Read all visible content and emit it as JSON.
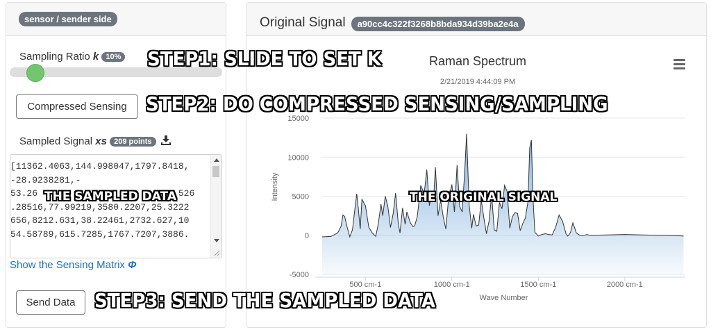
{
  "left_panel": {
    "header_badge": "sensor / sender side",
    "sampling_label": "Sampling Ratio",
    "sampling_var": "k",
    "sampling_badge": "10%",
    "slider_value": 0.1,
    "compress_button": "Compressed Sensing",
    "sampled_label": "Sampled Signal",
    "sampled_var": "xs",
    "points_badge": "209 points",
    "download_icon": "download-icon",
    "sampled_text": "[11362.4063,144.998047,1797.8418,\n-28.9238281,-\n53.26                          526\n.28516,77.99219,3580.2207,25.3222\n656,8212.631,38.22461,2732.627,10\n54.58789,615.7285,1767.7207,3886.",
    "matrix_link": "Show the Sensing Matrix",
    "matrix_symbol": "Φ",
    "send_button": "Send Data"
  },
  "right_panel": {
    "title": "Original Signal",
    "hash_badge": "a90cc4c322f3268b8bda934d39ba2e4a",
    "menu_icon": "hamburger-menu-icon"
  },
  "overlays": {
    "step1": "STEP1: SLIDE TO SET K",
    "step2": "STEP2: DO COMPRESSED SENSING/SAMPLING",
    "step3": "STEP3: SEND THE SAMPLED DATA",
    "sampled_data": "THE SAMPLED DATA",
    "original_signal": "THE ORIGINAL SIGNAL"
  },
  "chart_data": {
    "type": "area",
    "title": "Raman Spectrum",
    "subtitle": "2/21/2019 4:44:09 PM",
    "xlabel": "Wave Number",
    "ylabel": "Intensity",
    "xlim": [
      250,
      2350
    ],
    "ylim": [
      -5000,
      15000
    ],
    "y_ticks": [
      -5000,
      0,
      5000,
      10000,
      15000
    ],
    "x_ticks": [
      500,
      1000,
      1500,
      2000
    ],
    "x_tick_labels": [
      "500 cm-1",
      "1000 cm-1",
      "1500 cm-1",
      "2000 cm-1"
    ],
    "x": [
      250,
      300,
      340,
      360,
      370,
      380,
      395,
      410,
      425,
      440,
      450,
      460,
      470,
      480,
      500,
      520,
      540,
      560,
      575,
      590,
      600,
      615,
      630,
      645,
      660,
      675,
      690,
      700,
      715,
      730,
      740,
      760,
      775,
      785,
      800,
      820,
      840,
      855,
      870,
      885,
      895,
      905,
      920,
      935,
      950,
      965,
      980,
      1000,
      1015,
      1030,
      1045,
      1060,
      1075,
      1085,
      1100,
      1115,
      1125,
      1140,
      1155,
      1170,
      1185,
      1200,
      1215,
      1230,
      1245,
      1260,
      1275,
      1290,
      1305,
      1320,
      1335,
      1350,
      1365,
      1380,
      1395,
      1410,
      1425,
      1440,
      1450,
      1460,
      1470,
      1480,
      1500,
      1520,
      1540,
      1560,
      1580,
      1600,
      1620,
      1640,
      1660,
      1670,
      1685,
      1700,
      1720,
      1740,
      1760,
      1780,
      1800,
      1900,
      2000,
      2100,
      2200,
      2300,
      2340
    ],
    "y": [
      -200,
      -150,
      300,
      1200,
      2600,
      2400,
      1000,
      -200,
      700,
      3500,
      5300,
      3200,
      800,
      4600,
      3800,
      1000,
      300,
      -150,
      1500,
      4000,
      2500,
      5000,
      3700,
      1000,
      2700,
      5400,
      1500,
      300,
      3500,
      1400,
      3000,
      1600,
      1100,
      1200,
      2400,
      6400,
      5300,
      8400,
      3800,
      5600,
      4900,
      8700,
      2500,
      4500,
      2400,
      800,
      4500,
      6500,
      3000,
      9000,
      3700,
      3000,
      8500,
      13000,
      3900,
      900,
      2700,
      1200,
      1300,
      4500,
      2200,
      200,
      1800,
      5200,
      700,
      500,
      4200,
      3400,
      6400,
      5600,
      900,
      2400,
      2900,
      2800,
      600,
      1500,
      2200,
      4300,
      11200,
      12200,
      4500,
      400,
      -100,
      100,
      200,
      100,
      50,
      1000,
      2600,
      1800,
      200,
      -100,
      300,
      1600,
      300,
      0,
      -50,
      100,
      0,
      50,
      100,
      50,
      0,
      -50,
      -100
    ]
  }
}
